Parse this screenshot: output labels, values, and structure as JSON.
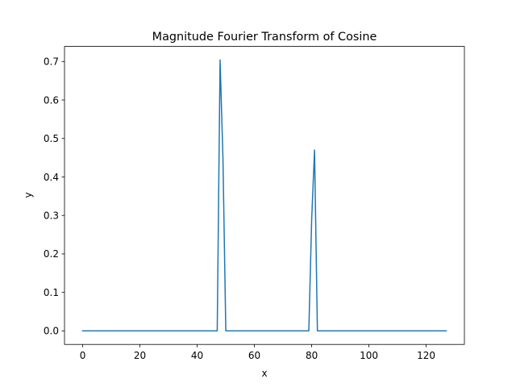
{
  "chart_data": {
    "type": "line",
    "title": "Magnitude Fourier Transform of Cosine",
    "xlabel": "x",
    "ylabel": "y",
    "xlim": [
      -6.35,
      133.35
    ],
    "ylim": [
      -0.0352,
      0.7392
    ],
    "grid": false,
    "legend": "none",
    "x_ticks": [
      0,
      20,
      40,
      60,
      80,
      100,
      120
    ],
    "y_ticks": [
      0.0,
      0.1,
      0.2,
      0.3,
      0.4,
      0.5,
      0.6,
      0.7
    ],
    "x_tick_labels": [
      "0",
      "20",
      "40",
      "60",
      "80",
      "100",
      "120"
    ],
    "y_tick_labels": [
      "0.0",
      "0.1",
      "0.2",
      "0.3",
      "0.4",
      "0.5",
      "0.6",
      "0.7"
    ],
    "series": [
      {
        "color": "#1f77b4",
        "x": [
          0,
          47,
          48,
          49,
          50,
          79,
          80,
          81,
          82,
          127
        ],
        "y": [
          0,
          0,
          0.704,
          0.45,
          0,
          0,
          0.29,
          0.47,
          0,
          0
        ]
      }
    ]
  }
}
